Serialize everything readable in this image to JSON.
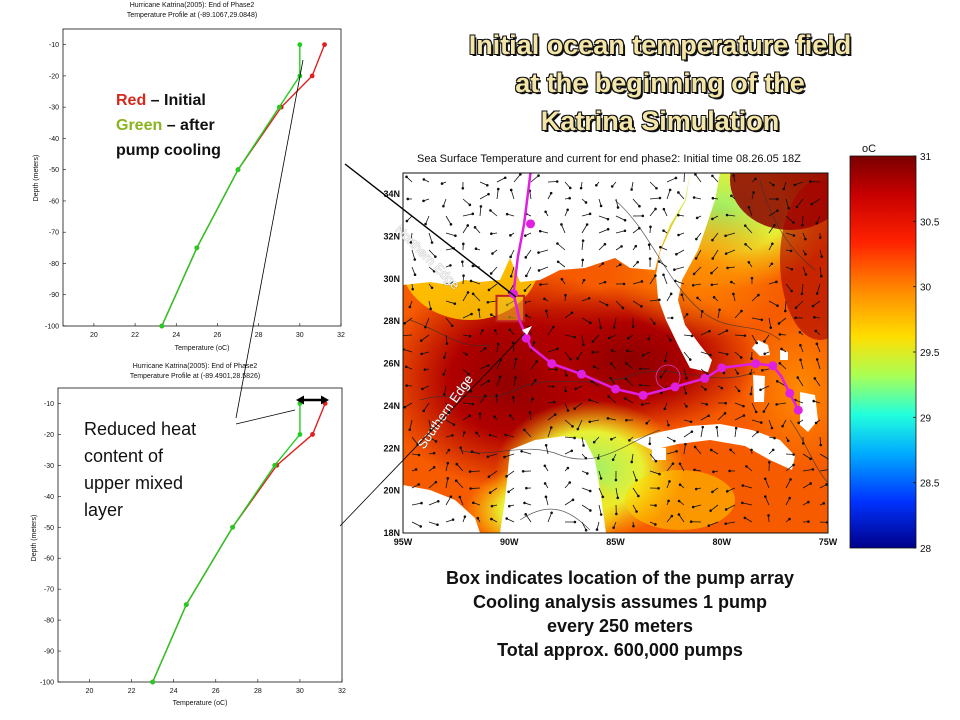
{
  "title": [
    "Initial ocean temperature field",
    "at the beginning of the",
    "Katrina Simulation"
  ],
  "caption": [
    "Box indicates location of the pump array",
    "Cooling analysis assumes 1 pump",
    "every 250 meters",
    "Total approx. 600,000 pumps"
  ],
  "legend_note": {
    "red_word": "Red",
    "red_rest": " – Initial",
    "green_word": "Green",
    "green_rest": " – after",
    "line3": "pump cooling",
    "red_color": "#d42a1e",
    "green_color": "#8ab41e"
  },
  "heat_note": [
    "Reduced heat",
    "content of",
    "upper mixed",
    "layer"
  ],
  "chart_data": [
    {
      "type": "line",
      "title": "Hurricane Katrina(2005): End of Phase2",
      "subtitle": "Temperature Profile at (-89.1067,29.0848)",
      "xlabel": "Temperature (oC)",
      "ylabel": "Depth (meters)",
      "xlim": [
        18.5,
        32
      ],
      "ylim": [
        -100,
        -5
      ],
      "xticks": [
        20,
        22,
        24,
        26,
        28,
        30,
        32
      ],
      "yticks": [
        -10,
        -20,
        -30,
        -40,
        -50,
        -60,
        -70,
        -80,
        -90,
        -100
      ],
      "series": [
        {
          "name": "Red – Initial",
          "color": "#e02020",
          "points": [
            [
              31.2,
              -10
            ],
            [
              30.6,
              -20
            ],
            [
              29.1,
              -30
            ],
            [
              27.0,
              -50
            ],
            [
              25.0,
              -75
            ],
            [
              23.3,
              -100
            ]
          ]
        },
        {
          "name": "Green – after pump cooling",
          "color": "#22cc22",
          "points": [
            [
              30.0,
              -10
            ],
            [
              30.0,
              -20
            ],
            [
              29.0,
              -30
            ],
            [
              27.0,
              -50
            ],
            [
              25.0,
              -75
            ],
            [
              23.3,
              -100
            ]
          ]
        }
      ]
    },
    {
      "type": "line",
      "title": "Hurricane Katrina(2005): End of Phase2",
      "subtitle": "Temperature Profile at (-89.4901,28.5826)",
      "xlabel": "Temperature (oC)",
      "ylabel": "Depth (meters)",
      "xlim": [
        18.5,
        32
      ],
      "ylim": [
        -100,
        -5
      ],
      "xticks": [
        20,
        22,
        24,
        26,
        28,
        30,
        32
      ],
      "yticks": [
        -10,
        -20,
        -30,
        -40,
        -50,
        -60,
        -70,
        -80,
        -90,
        -100
      ],
      "series": [
        {
          "name": "Red – Initial",
          "color": "#e02020",
          "points": [
            [
              31.2,
              -10
            ],
            [
              30.6,
              -20
            ],
            [
              28.9,
              -30
            ],
            [
              26.8,
              -50
            ],
            [
              24.6,
              -75
            ],
            [
              23.0,
              -100
            ]
          ]
        },
        {
          "name": "Green – after pump cooling",
          "color": "#22cc22",
          "points": [
            [
              30.0,
              -10
            ],
            [
              30.0,
              -20
            ],
            [
              28.8,
              -30
            ],
            [
              26.8,
              -50
            ],
            [
              24.6,
              -75
            ],
            [
              23.0,
              -100
            ]
          ]
        }
      ]
    },
    {
      "type": "heatmap",
      "title": "Sea Surface Temperature and current for end phase2: Initial time 08.26.05 18Z",
      "xticks": [
        "95W",
        "90W",
        "85W",
        "80W",
        "75W"
      ],
      "yticks": [
        "34N",
        "32N",
        "30N",
        "28N",
        "26N",
        "24N",
        "22N",
        "20N",
        "18N"
      ],
      "colorbar": {
        "unit": "oC",
        "ticks": [
          "31",
          "30.5",
          "30",
          "29.5",
          "29",
          "28.5",
          "28"
        ]
      },
      "labels": {
        "northern": "Northern Edge",
        "southern": "Southern Edge"
      },
      "track": [
        [
          89.0,
          35.0
        ],
        [
          89.3,
          32.6
        ],
        [
          89.6,
          31.0
        ],
        [
          89.8,
          29.3
        ],
        [
          89.5,
          28.0
        ],
        [
          89.0,
          26.8
        ],
        [
          88.0,
          26.0
        ],
        [
          86.6,
          25.5
        ],
        [
          85.0,
          24.8
        ],
        [
          83.7,
          24.5
        ],
        [
          82.2,
          24.9
        ],
        [
          80.8,
          25.3
        ],
        [
          80.0,
          25.8
        ],
        [
          78.4,
          26.0
        ],
        [
          77.6,
          25.9
        ],
        [
          77.2,
          25.4
        ],
        [
          76.8,
          24.6
        ],
        [
          76.4,
          23.8
        ]
      ],
      "track_points": [
        [
          89.0,
          32.6
        ],
        [
          89.8,
          29.3
        ],
        [
          89.2,
          27.2
        ],
        [
          88.0,
          26.0
        ],
        [
          86.6,
          25.5
        ],
        [
          85.0,
          24.8
        ],
        [
          83.7,
          24.5
        ],
        [
          82.2,
          24.9
        ],
        [
          80.8,
          25.3
        ],
        [
          80.0,
          25.8
        ],
        [
          78.4,
          26.0
        ],
        [
          77.6,
          25.9
        ],
        [
          76.8,
          24.6
        ],
        [
          76.4,
          23.8
        ]
      ],
      "pump_box": {
        "lon": [
          89.3,
          90.6
        ],
        "lat": [
          28.0,
          29.2
        ]
      }
    }
  ]
}
